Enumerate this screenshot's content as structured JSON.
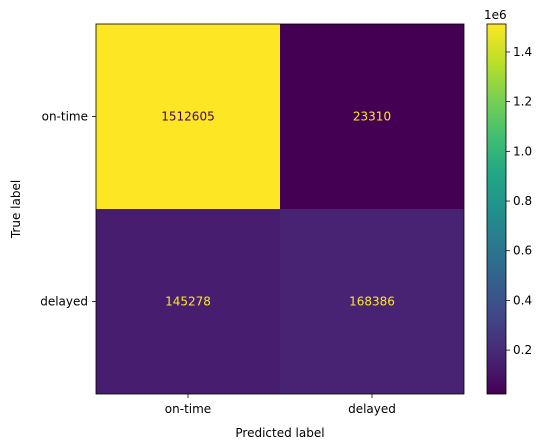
{
  "chart_data": {
    "type": "heatmap",
    "title": "",
    "xlabel": "Predicted label",
    "ylabel": "True label",
    "x_categories": [
      "on-time",
      "delayed"
    ],
    "y_categories": [
      "on-time",
      "delayed"
    ],
    "values": [
      [
        1512605,
        23310
      ],
      [
        145278,
        168386
      ]
    ],
    "cell_labels": [
      [
        "1512605",
        "23310"
      ],
      [
        "145278",
        "168386"
      ]
    ],
    "colormap": "viridis",
    "colorbar": {
      "range": [
        23310,
        1512605
      ],
      "ticks": [
        0.2,
        0.4,
        0.6,
        0.8,
        1.0,
        1.2,
        1.4
      ],
      "tick_labels": [
        "0.2",
        "0.4",
        "0.6",
        "0.8",
        "1.0",
        "1.2",
        "1.4"
      ],
      "multiplier_label": "1e6"
    },
    "text_color_light": "#fde725",
    "text_color_dark": "#440154"
  }
}
